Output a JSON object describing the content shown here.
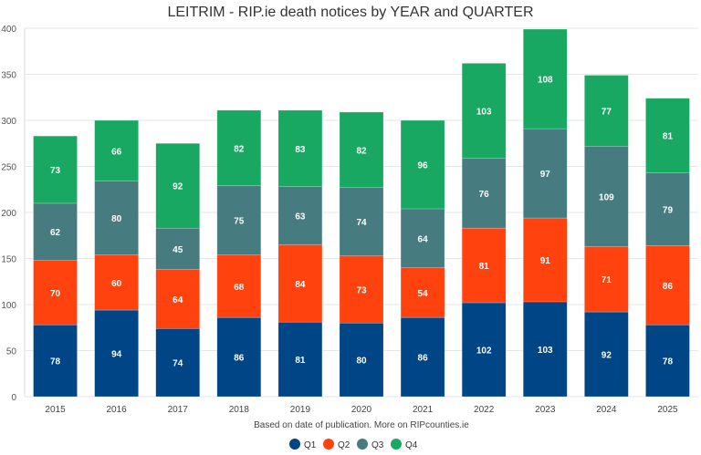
{
  "chart_data": {
    "type": "bar",
    "stacked": true,
    "title": "LEITRIM - RIP.ie death notices by YEAR and QUARTER",
    "subtitle": "Based on date of publication. More on RIPcounties.ie",
    "xlabel": "",
    "ylabel": "",
    "ylim": [
      0,
      400
    ],
    "yticks": [
      0,
      50,
      100,
      150,
      200,
      250,
      300,
      350,
      400
    ],
    "grid": true,
    "legend_position": "bottom",
    "categories": [
      "2015",
      "2016",
      "2017",
      "2018",
      "2019",
      "2020",
      "2021",
      "2022",
      "2023",
      "2024",
      "2025"
    ],
    "series": [
      {
        "name": "Q1",
        "color": "#004586",
        "values": [
          78,
          94,
          74,
          86,
          81,
          80,
          86,
          102,
          103,
          92,
          78
        ]
      },
      {
        "name": "Q2",
        "color": "#ff420e",
        "values": [
          70,
          60,
          64,
          68,
          84,
          73,
          54,
          81,
          91,
          71,
          86
        ]
      },
      {
        "name": "Q3",
        "color": "#467c7f",
        "values": [
          62,
          80,
          45,
          75,
          63,
          74,
          64,
          76,
          97,
          109,
          79
        ]
      },
      {
        "name": "Q4",
        "color": "#18a862",
        "values": [
          73,
          66,
          92,
          82,
          83,
          82,
          96,
          103,
          108,
          77,
          81
        ]
      }
    ]
  }
}
